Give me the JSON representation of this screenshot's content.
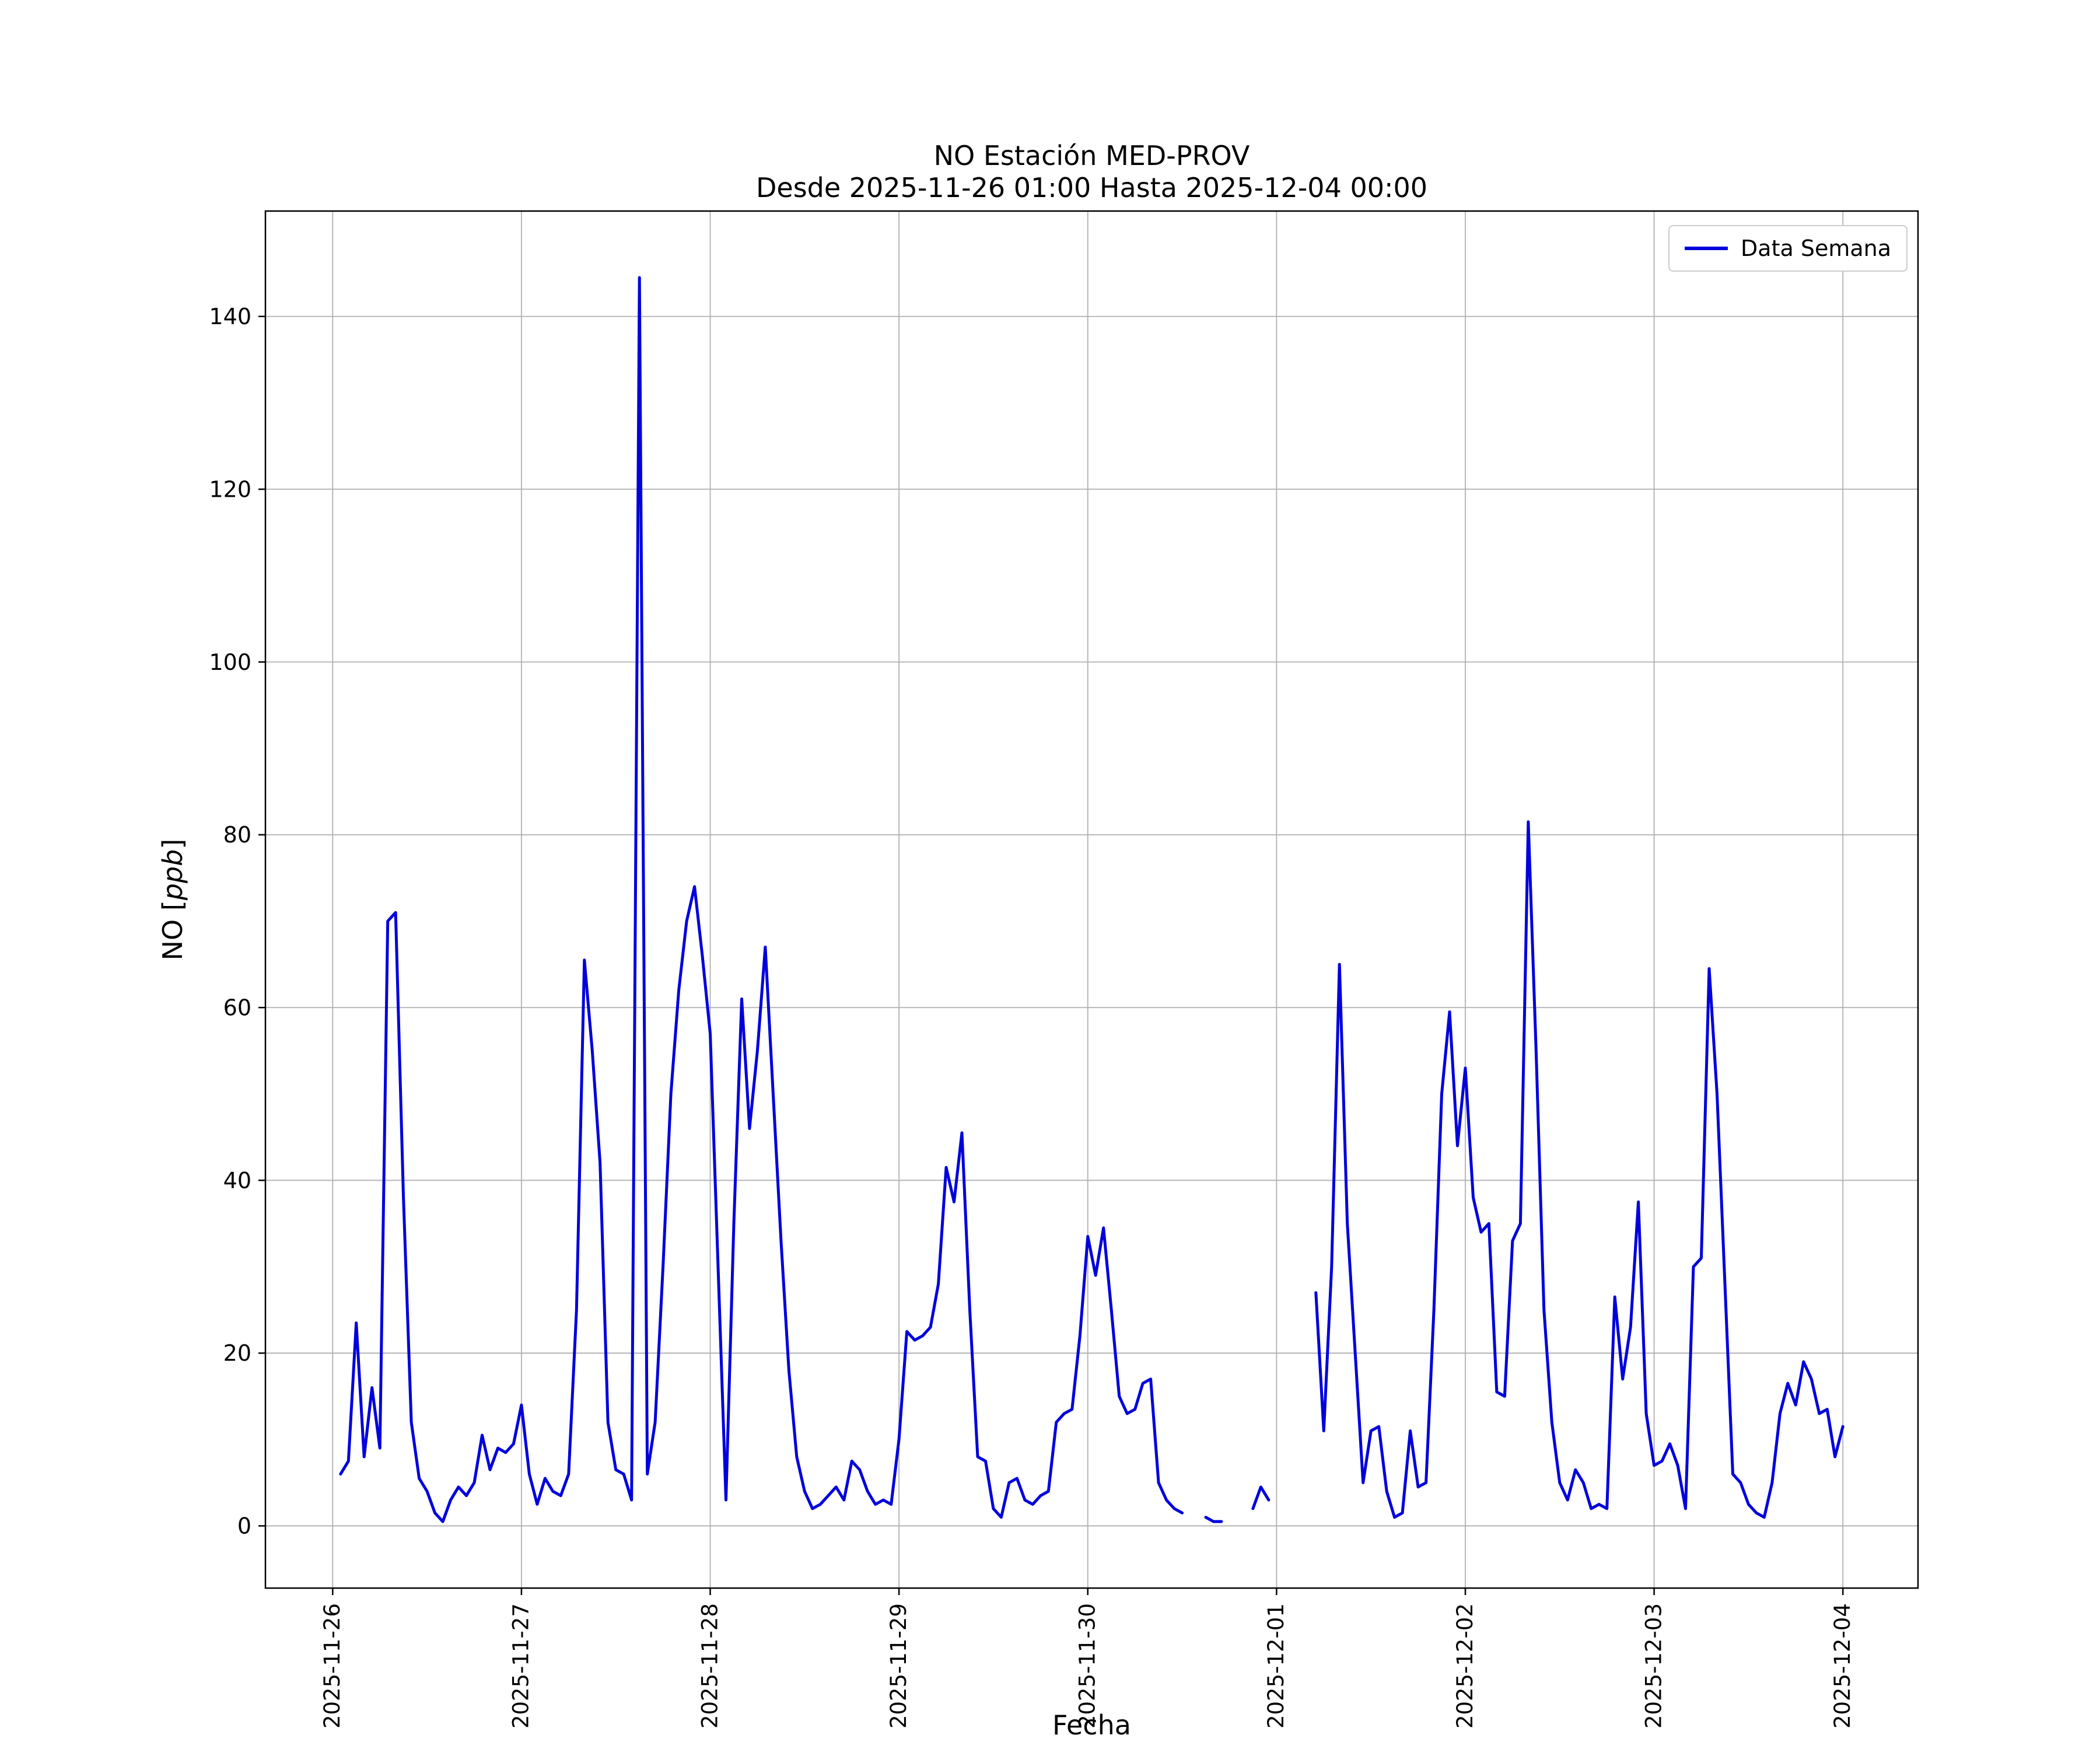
{
  "figure": {
    "title_line1": "NO Estación MED-PROV",
    "title_line2": "Desde 2025-11-26 01:00 Hasta 2025-12-04 00:00",
    "xlabel": "Fecha",
    "ylabel_prefix": "NO [",
    "ylabel_italic": "ppb",
    "ylabel_suffix": "]",
    "legend_label": "Data Semana",
    "line_color": "#0000dd",
    "grid_color": "#b0b0b0",
    "background_color": "#ffffff"
  },
  "chart_data": {
    "type": "line",
    "title": "NO Estación MED-PROV\nDesde 2025-11-26 01:00 Hasta 2025-12-04 00:00",
    "xlabel": "Fecha",
    "ylabel": "NO [ppb]",
    "legend": [
      "Data Semana"
    ],
    "legend_position": "upper right",
    "grid": true,
    "x_start": "2025-11-26 01:00",
    "x_step_hours": 1,
    "x_offset_hours": 1,
    "x_tick_hours": [
      0,
      24,
      48,
      72,
      96,
      120,
      144,
      168,
      192
    ],
    "x_tick_labels": [
      "2025-11-26",
      "2025-11-27",
      "2025-11-28",
      "2025-11-29",
      "2025-11-30",
      "2025-12-01",
      "2025-12-02",
      "2025-12-03",
      "2025-12-04"
    ],
    "y_ticks": [
      0,
      20,
      40,
      60,
      80,
      100,
      120,
      140
    ],
    "xlim_hours": [
      -8.55,
      201.55
    ],
    "ylim": [
      -7.2,
      152.2
    ],
    "series": [
      {
        "name": "Data Semana",
        "color": "#0000dd",
        "values_ppb": [
          6,
          7.5,
          23.5,
          8,
          16,
          9,
          70,
          71,
          38,
          12,
          5.5,
          4,
          1.5,
          0.5,
          3,
          4.5,
          3.5,
          5,
          10.5,
          6.5,
          9,
          8.5,
          9.5,
          14,
          6,
          2.5,
          5.5,
          4,
          3.5,
          6,
          25,
          65.5,
          55,
          42,
          12,
          6.5,
          6,
          3,
          144.5,
          6,
          12,
          30,
          50,
          62,
          70,
          74,
          66,
          57,
          30,
          3,
          35,
          61,
          46,
          55,
          67,
          50,
          33,
          18,
          8,
          4,
          2,
          2.5,
          3.5,
          4.5,
          3,
          7.5,
          6.5,
          4,
          2.5,
          3,
          2.5,
          10,
          22.5,
          21.5,
          22,
          23,
          28,
          41.5,
          37.5,
          45.5,
          25,
          8,
          7.5,
          2,
          1,
          5,
          5.5,
          3,
          2.5,
          3.5,
          4,
          12,
          13,
          13.5,
          22,
          33.5,
          29,
          34.5,
          25,
          15,
          13,
          13.5,
          16.5,
          17,
          5,
          3,
          2,
          1.5,
          null,
          null,
          1,
          0.5,
          0.5,
          null,
          null,
          null,
          2,
          4.5,
          3,
          null,
          null,
          null,
          null,
          null,
          27,
          11,
          30,
          65,
          35,
          20,
          5,
          11,
          11.5,
          4,
          1,
          1.5,
          11,
          4.5,
          5,
          25,
          50,
          59.5,
          44,
          53,
          38,
          34,
          35,
          15.5,
          15,
          33,
          35,
          81.5,
          55,
          25,
          12,
          5,
          3,
          6.5,
          5,
          2,
          2.5,
          2,
          26.5,
          17,
          23,
          37.5,
          13,
          7,
          7.5,
          9.5,
          7,
          2,
          30,
          31,
          64.5,
          50,
          28,
          6,
          5,
          2.5,
          1.5,
          1,
          5,
          13,
          16.5,
          14,
          19,
          17,
          13,
          13.5,
          8,
          11.5
        ]
      }
    ]
  }
}
